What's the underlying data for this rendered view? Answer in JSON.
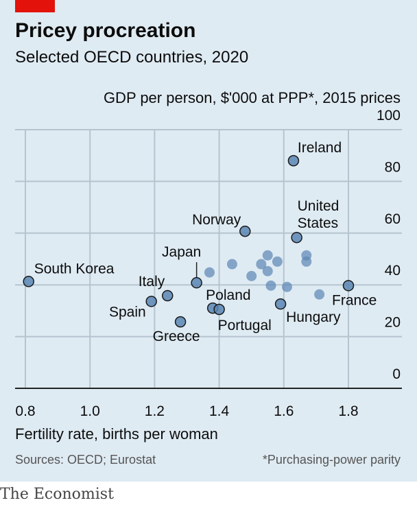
{
  "brand": "The Economist",
  "colors": {
    "accent": "#e3120b",
    "point": "#5b86b3",
    "background": "#dfebf3"
  },
  "chart_data": {
    "type": "scatter",
    "title": "Pricey procreation",
    "subtitle": "Selected OECD countries, 2020",
    "xlabel": "Fertility rate, births per woman",
    "ylabel": "GDP per person, $'000 at PPP*, 2015 prices",
    "xlim": [
      0.8,
      1.8
    ],
    "ylim": [
      0,
      100
    ],
    "xticks": [
      "0.8",
      "1.0",
      "1.2",
      "1.4",
      "1.6",
      "1.8"
    ],
    "yticks": [
      "0",
      "20",
      "40",
      "60",
      "80",
      "100"
    ],
    "grid": true,
    "points": [
      {
        "label": "South Korea",
        "x": 0.81,
        "y": 41.3
      },
      {
        "label": "Spain",
        "x": 1.19,
        "y": 33.6
      },
      {
        "label": "Italy",
        "x": 1.24,
        "y": 35.8
      },
      {
        "label": "Greece",
        "x": 1.28,
        "y": 25.7
      },
      {
        "label": "Japan",
        "x": 1.33,
        "y": 40.8
      },
      {
        "label": "Poland",
        "x": 1.38,
        "y": 31.0
      },
      {
        "label": "Portugal",
        "x": 1.4,
        "y": 30.5
      },
      {
        "label": "Norway",
        "x": 1.48,
        "y": 60.7
      },
      {
        "label": "Hungary",
        "x": 1.59,
        "y": 32.6
      },
      {
        "label": "Ireland",
        "x": 1.63,
        "y": 88.0
      },
      {
        "label": "United States",
        "x": 1.64,
        "y": 58.3
      },
      {
        "label": "France",
        "x": 1.8,
        "y": 39.7
      },
      {
        "x": 1.37,
        "y": 44.8
      },
      {
        "x": 1.44,
        "y": 48.0
      },
      {
        "x": 1.5,
        "y": 43.4
      },
      {
        "x": 1.53,
        "y": 48.0
      },
      {
        "x": 1.55,
        "y": 51.4
      },
      {
        "x": 1.55,
        "y": 45.3
      },
      {
        "x": 1.58,
        "y": 49.0
      },
      {
        "x": 1.56,
        "y": 39.7
      },
      {
        "x": 1.61,
        "y": 39.2
      },
      {
        "x": 1.67,
        "y": 51.4
      },
      {
        "x": 1.67,
        "y": 49.0
      },
      {
        "x": 1.71,
        "y": 36.3
      }
    ],
    "sources": "Sources: OECD; Eurostat",
    "footnote": "*Purchasing-power parity"
  }
}
